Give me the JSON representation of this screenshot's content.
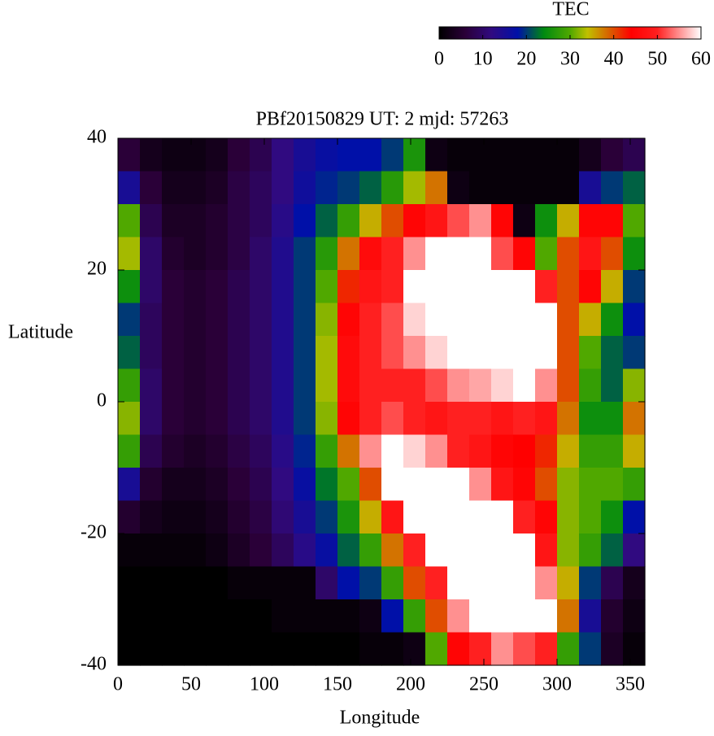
{
  "chart_data": {
    "type": "heatmap",
    "title": "PBf20150829  UT: 2  mjd: 57263",
    "xlabel": "Longitude",
    "ylabel": "Latitude",
    "xlim": [
      0,
      360
    ],
    "xticks": [
      0,
      50,
      100,
      150,
      200,
      250,
      300,
      350
    ],
    "ylim": [
      -40,
      40
    ],
    "yticks": [
      -40,
      -20,
      0,
      20,
      40
    ],
    "colorbar_label": "TEC",
    "clim": [
      0,
      60
    ],
    "cticks": [
      0,
      10,
      20,
      30,
      40,
      50,
      60
    ],
    "colormap": [
      {
        "value": 0,
        "color": "#000000"
      },
      {
        "value": 6,
        "color": "#2a0038"
      },
      {
        "value": 12,
        "color": "#300a80"
      },
      {
        "value": 18,
        "color": "#0010a8"
      },
      {
        "value": 24,
        "color": "#008a10"
      },
      {
        "value": 30,
        "color": "#50a800"
      },
      {
        "value": 34,
        "color": "#c0c000"
      },
      {
        "value": 39,
        "color": "#d86000"
      },
      {
        "value": 44,
        "color": "#ff0000"
      },
      {
        "value": 50,
        "color": "#ff2020"
      },
      {
        "value": 55,
        "color": "#ff9090"
      },
      {
        "value": 60,
        "color": "#ffffff"
      }
    ],
    "x": [
      7.5,
      22.5,
      37.5,
      52.5,
      67.5,
      82.5,
      97.5,
      112.5,
      127.5,
      142.5,
      157.5,
      172.5,
      187.5,
      202.5,
      217.5,
      232.5,
      247.5,
      262.5,
      277.5,
      292.5,
      307.5,
      322.5,
      337.5,
      352.5
    ],
    "y": [
      37.5,
      32.5,
      27.5,
      22.5,
      17.5,
      12.5,
      7.5,
      2.5,
      -2.5,
      -7.5,
      -12.5,
      -17.5,
      -22.5,
      -27.5,
      -32.5,
      -37.5
    ],
    "z": [
      [
        6,
        3,
        2,
        2,
        3,
        6,
        8,
        12,
        15,
        17,
        18,
        18,
        20,
        26,
        2,
        1,
        1,
        1,
        1,
        1,
        1,
        3,
        6,
        8
      ],
      [
        15,
        6,
        3,
        3,
        4,
        7,
        9,
        12,
        16,
        19,
        20,
        22,
        27,
        33,
        38,
        2,
        1,
        1,
        1,
        1,
        1,
        15,
        20,
        22
      ],
      [
        30,
        8,
        4,
        4,
        5,
        7,
        9,
        13,
        18,
        22,
        28,
        35,
        40,
        45,
        48,
        52,
        55,
        45,
        2,
        25,
        35,
        45,
        45,
        30
      ],
      [
        33,
        10,
        5,
        4,
        5,
        7,
        10,
        14,
        20,
        27,
        38,
        46,
        50,
        55,
        60,
        60,
        60,
        52,
        45,
        30,
        40,
        48,
        40,
        25
      ],
      [
        25,
        10,
        6,
        5,
        6,
        8,
        10,
        14,
        20,
        30,
        42,
        48,
        50,
        60,
        60,
        60,
        60,
        60,
        60,
        50,
        40,
        45,
        35,
        20
      ],
      [
        20,
        9,
        6,
        5,
        6,
        8,
        10,
        14,
        20,
        32,
        45,
        50,
        52,
        58,
        60,
        60,
        60,
        60,
        60,
        60,
        40,
        35,
        25,
        18
      ],
      [
        22,
        9,
        6,
        5,
        6,
        8,
        10,
        14,
        20,
        33,
        46,
        50,
        52,
        55,
        58,
        60,
        60,
        60,
        60,
        60,
        40,
        30,
        22,
        20
      ],
      [
        28,
        10,
        6,
        5,
        6,
        8,
        10,
        14,
        20,
        33,
        46,
        50,
        50,
        50,
        52,
        55,
        56,
        58,
        60,
        55,
        40,
        28,
        22,
        32
      ],
      [
        32,
        10,
        6,
        5,
        6,
        8,
        10,
        14,
        20,
        32,
        45,
        50,
        52,
        50,
        48,
        50,
        50,
        48,
        50,
        48,
        38,
        25,
        25,
        38
      ],
      [
        28,
        8,
        5,
        4,
        5,
        7,
        9,
        13,
        19,
        28,
        38,
        55,
        60,
        58,
        55,
        50,
        48,
        45,
        44,
        42,
        35,
        28,
        28,
        35
      ],
      [
        15,
        5,
        3,
        3,
        4,
        6,
        8,
        12,
        17,
        23,
        30,
        40,
        60,
        60,
        60,
        60,
        55,
        48,
        45,
        40,
        32,
        30,
        30,
        28
      ],
      [
        5,
        3,
        2,
        2,
        3,
        5,
        7,
        11,
        15,
        20,
        26,
        35,
        48,
        60,
        60,
        60,
        60,
        60,
        50,
        45,
        32,
        30,
        25,
        18
      ],
      [
        1,
        1,
        1,
        1,
        2,
        4,
        6,
        9,
        13,
        17,
        22,
        28,
        38,
        50,
        60,
        60,
        60,
        60,
        60,
        48,
        32,
        28,
        22,
        12
      ],
      [
        0,
        0,
        0,
        0,
        0,
        1,
        1,
        1,
        1,
        10,
        18,
        20,
        28,
        40,
        50,
        60,
        60,
        60,
        60,
        55,
        35,
        20,
        8,
        3
      ],
      [
        0,
        0,
        0,
        0,
        0,
        0,
        0,
        1,
        1,
        1,
        1,
        2,
        18,
        28,
        40,
        55,
        60,
        60,
        60,
        60,
        38,
        15,
        5,
        2
      ],
      [
        0,
        0,
        0,
        0,
        0,
        0,
        0,
        0,
        0,
        0,
        0,
        1,
        1,
        2,
        30,
        45,
        50,
        55,
        52,
        50,
        28,
        20,
        4,
        1
      ]
    ]
  }
}
